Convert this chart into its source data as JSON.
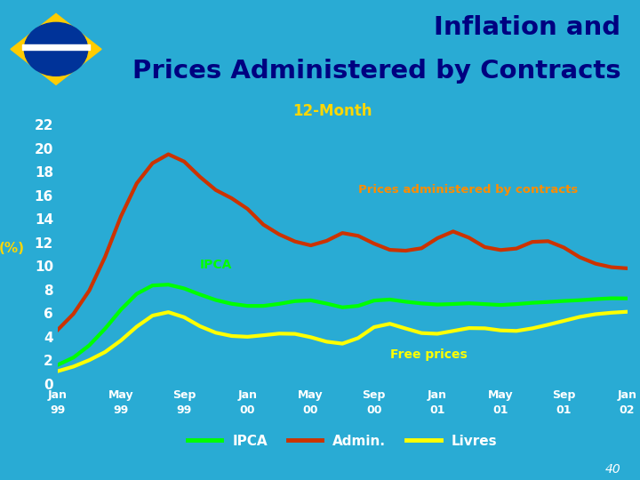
{
  "title_line1": "Inflation and",
  "title_line2": "Prices Administered by Contracts",
  "subtitle": "12-Month",
  "ylabel": "(%)",
  "bg_color": "#29ABD4",
  "header_bg_color": "#B8D8E8",
  "title_color": "#000080",
  "subtitle_color": "#FFD700",
  "ylabel_color": "#FFD700",
  "tick_color": "#FFFFFF",
  "yticks": [
    0,
    2,
    4,
    6,
    8,
    10,
    12,
    14,
    16,
    18,
    20,
    22
  ],
  "ylim": [
    0,
    23
  ],
  "x_tick_labels": [
    "Jan\n99",
    "May\n99",
    "Sep\n99",
    "Jan\n00",
    "May\n00",
    "Sep\n00",
    "Jan\n01",
    "May\n01",
    "Sep\n01",
    "Jan\n02"
  ],
  "ipca_color": "#00FF00",
  "admin_color": "#CC3300",
  "livres_color": "#FFFF00",
  "ipca_label": "IPCA",
  "admin_label": "Admin.",
  "livres_label": "Livres",
  "annotation_admin": "Prices administered by contracts",
  "annotation_admin_color": "#FF8C00",
  "annotation_ipca": "IPCA",
  "annotation_ipca_color": "#00FF00",
  "annotation_livres": "Free prices",
  "annotation_livres_color": "#FFFF00",
  "ipca_data": [
    1.2,
    2.2,
    3.0,
    4.5,
    6.5,
    8.0,
    8.8,
    8.5,
    8.3,
    7.5,
    7.0,
    6.8,
    6.5,
    6.5,
    6.8,
    7.0,
    7.5,
    6.8,
    6.3,
    6.0,
    7.8,
    7.2,
    6.8,
    7.0,
    6.5,
    6.8,
    7.0,
    6.8,
    6.5,
    6.8,
    7.0,
    6.8,
    7.2,
    7.0,
    7.2,
    7.4,
    7.2
  ],
  "admin_data": [
    4.0,
    6.0,
    7.5,
    10.5,
    14.5,
    17.5,
    18.8,
    20.2,
    19.0,
    17.5,
    16.2,
    15.8,
    15.3,
    13.0,
    12.8,
    12.0,
    11.5,
    11.8,
    13.5,
    12.5,
    12.0,
    11.0,
    11.5,
    11.0,
    12.5,
    13.5,
    12.5,
    11.2,
    11.5,
    11.0,
    12.5,
    12.2,
    11.8,
    10.5,
    10.2,
    9.8,
    9.8
  ],
  "livres_data": [
    0.8,
    1.5,
    2.0,
    2.5,
    3.5,
    5.0,
    6.2,
    6.5,
    6.0,
    4.5,
    4.3,
    4.0,
    3.8,
    4.2,
    4.3,
    4.5,
    4.0,
    3.5,
    3.2,
    3.0,
    5.8,
    5.5,
    4.5,
    4.2,
    4.0,
    4.5,
    5.0,
    4.8,
    4.5,
    4.2,
    4.8,
    5.0,
    5.3,
    5.8,
    6.0,
    6.0,
    6.2
  ],
  "n_points": 37,
  "line_width": 3.0,
  "page_number": "40",
  "flag_green": "#009900",
  "flag_yellow": "#FFCC00",
  "flag_blue": "#003399"
}
